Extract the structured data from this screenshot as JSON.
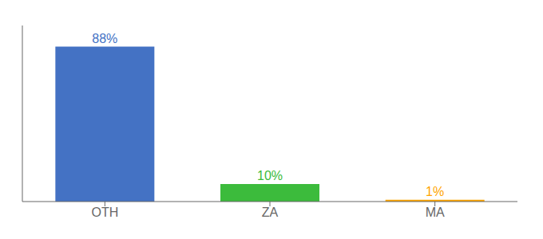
{
  "chart_data": {
    "type": "bar",
    "categories": [
      "OTH",
      "ZA",
      "MA"
    ],
    "values": [
      88,
      10,
      1
    ],
    "value_labels": [
      "88%",
      "10%",
      "1%"
    ],
    "colors": [
      "#4472C4",
      "#3CBB3C",
      "#FFA500"
    ],
    "ylim": [
      0,
      100
    ],
    "data_labels": true,
    "tick_labels": "x",
    "grid": false
  }
}
